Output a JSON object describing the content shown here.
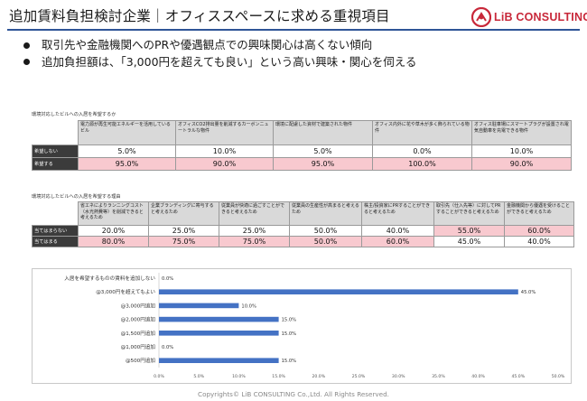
{
  "header": {
    "title": "追加賃料負担検討企業｜オフィススペースに求める重視項目",
    "logo_text": "LiB CONSULTING",
    "brand_color": "#c8283a",
    "rule_color": "#2f5597"
  },
  "bullets": [
    "取引先や金融機関へのPRや優遇観点での興味関心は高くない傾向",
    "追加負担額は、「3,000円を超えても良い」という高い興味・関心を伺える"
  ],
  "table1": {
    "caption": "環境対応したビルへの入居を希望するか",
    "headers": [
      "電力源が再生可能エネルギーを活用しているビル",
      "オフィスCO2排出量を削減するカーボンニュートラルな物件",
      "環境に配慮した資材で建築された物件",
      "オフィス内外に花や草木が多く飾られている物件",
      "オフィス駐車場にスマートプラグが設置され電気自動車を充電できる物件"
    ],
    "rows": [
      {
        "label": "希望しない",
        "values": [
          "5.0%",
          "10.0%",
          "5.0%",
          "0.0%",
          "10.0%"
        ],
        "highlight": false
      },
      {
        "label": "希望する",
        "values": [
          "95.0%",
          "90.0%",
          "95.0%",
          "100.0%",
          "90.0%"
        ],
        "highlight": true
      }
    ]
  },
  "table2": {
    "caption": "環境対応したビルへの入居を希望する理由",
    "headers": [
      "省エネによりランニングコスト（水光熱費等）を削減できると考えるため",
      "企業ブランディングに寄与すると考えるため",
      "従業員が快適に過ごすことができると考えるため",
      "従業員の生産性が高まると考えるため",
      "株主/投資家にPRすることができると考えるため",
      "取引先（仕入先等）に対してPRすることができると考えるため",
      "金融機関から優遇を受けることができると考えるため"
    ],
    "rows": [
      {
        "label": "当てはまらない",
        "values": [
          "20.0%",
          "25.0%",
          "25.0%",
          "50.0%",
          "40.0%",
          "55.0%",
          "60.0%"
        ]
      },
      {
        "label": "当てはまる",
        "values": [
          "80.0%",
          "75.0%",
          "75.0%",
          "50.0%",
          "60.0%",
          "45.0%",
          "40.0%"
        ]
      }
    ]
  },
  "chart_data": {
    "type": "bar",
    "orientation": "horizontal",
    "categories": [
      "入居を希望するものの賃料を追加しない",
      "@3,000円を超えてもよい",
      "@3,000円追加",
      "@2,000円追加",
      "@1,500円追加",
      "@1,000円追加",
      "@500円追加"
    ],
    "values": [
      0.0,
      45.0,
      10.0,
      15.0,
      15.0,
      0.0,
      15.0
    ],
    "value_labels": [
      "0.0%",
      "45.0%",
      "10.0%",
      "15.0%",
      "15.0%",
      "0.0%",
      "15.0%"
    ],
    "tick_labels": [
      "0.0%",
      "5.0%",
      "10.0%",
      "15.0%",
      "20.0%",
      "25.0%",
      "30.0%",
      "35.0%",
      "40.0%",
      "45.0%",
      "50.0%"
    ],
    "xlim": [
      0,
      50
    ],
    "bar_color": "#4472c4",
    "grid": false
  },
  "footer": {
    "text": "Copyrights© LiB CONSULTING Co.,Ltd. All Rights Reserved."
  },
  "colors": {
    "highlight": "#f8c9cf",
    "row_label_bg": "#3b3b3b",
    "header_bg": "#d9d9d9"
  }
}
